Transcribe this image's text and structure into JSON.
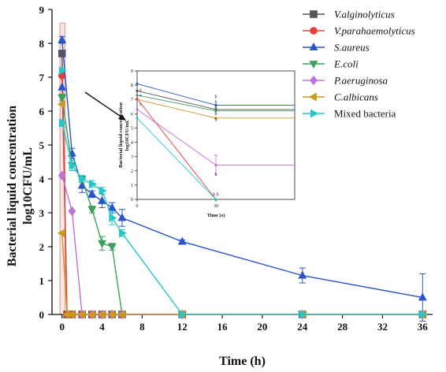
{
  "chart_data": {
    "type": "line",
    "xlabel": "Time (h)",
    "ylabel": "Bacterial liquid concentration log10CFU/mL",
    "ylabel_lines": [
      "Bacterial liquid concentration",
      "log10CFU/mL"
    ],
    "xlim": [
      -1,
      37
    ],
    "ylim": [
      0,
      9
    ],
    "x_ticks": [
      0,
      4,
      8,
      12,
      16,
      20,
      24,
      28,
      32,
      36
    ],
    "y_ticks": [
      0,
      1,
      2,
      3,
      4,
      5,
      6,
      7,
      8,
      9
    ],
    "grid": false,
    "legend_position": "top-right",
    "series": [
      {
        "name": "V.alginolyticus",
        "italic": true,
        "color": "#555555",
        "marker": "square",
        "points": [
          [
            0,
            7.7
          ],
          [
            0.5,
            0
          ],
          [
            1,
            0
          ],
          [
            2,
            0
          ],
          [
            3,
            0
          ],
          [
            4,
            0
          ],
          [
            5,
            0
          ],
          [
            6,
            0
          ],
          [
            12,
            0
          ],
          [
            24,
            0
          ],
          [
            36,
            0
          ]
        ]
      },
      {
        "name": "V.parahaemolyticus",
        "italic": true,
        "color": "#e8403a",
        "marker": "circle",
        "points": [
          [
            0,
            7.05
          ],
          [
            0.5,
            0
          ],
          [
            1,
            0
          ],
          [
            2,
            0
          ],
          [
            3,
            0
          ],
          [
            4,
            0
          ],
          [
            5,
            0
          ],
          [
            6,
            0
          ],
          [
            12,
            0
          ],
          [
            24,
            0
          ],
          [
            36,
            0
          ]
        ]
      },
      {
        "name": "S.aureus",
        "italic": true,
        "color": "#2a55c8",
        "marker": "triangle-up",
        "points": [
          [
            0,
            8.1
          ],
          [
            1,
            4.75
          ],
          [
            2,
            3.8
          ],
          [
            3,
            3.55
          ],
          [
            4,
            3.35
          ],
          [
            5,
            3.15
          ],
          [
            6,
            2.85
          ],
          [
            12,
            2.15
          ],
          [
            24,
            1.15
          ],
          [
            36,
            0.5
          ]
        ],
        "errors": [
          0.1,
          0.15,
          0.2,
          0.1,
          0.2,
          0.15,
          0.25,
          0.05,
          0.22,
          0.7
        ]
      },
      {
        "name": "E.coli",
        "italic": true,
        "color": "#3aa05a",
        "marker": "triangle-down",
        "points": [
          [
            0,
            6.4
          ],
          [
            1,
            4.4
          ],
          [
            2,
            4.0
          ],
          [
            3,
            3.1
          ],
          [
            4,
            2.1
          ],
          [
            5,
            2.0
          ],
          [
            6,
            0
          ],
          [
            12,
            0
          ],
          [
            24,
            0
          ],
          [
            36,
            0
          ]
        ],
        "errors": [
          0.1,
          0.15,
          0.1,
          0.1,
          0.2,
          0.1,
          0,
          0,
          0,
          0
        ]
      },
      {
        "name": "P.aeruginosa",
        "italic": true,
        "color": "#c070d8",
        "marker": "diamond",
        "points": [
          [
            0,
            4.1
          ],
          [
            1,
            3.05
          ],
          [
            2,
            0
          ],
          [
            3,
            0
          ],
          [
            4,
            0
          ],
          [
            5,
            0
          ],
          [
            6,
            0
          ],
          [
            12,
            0
          ],
          [
            24,
            0
          ],
          [
            36,
            0
          ]
        ]
      },
      {
        "name": "C.albicans",
        "italic": true,
        "color": "#c89a1e",
        "marker": "triangle-left",
        "points": [
          [
            0,
            2.4
          ],
          [
            0.5,
            0
          ],
          [
            1,
            0
          ],
          [
            2,
            0
          ],
          [
            3,
            0
          ],
          [
            4,
            0
          ],
          [
            5,
            0
          ],
          [
            6,
            0
          ],
          [
            12,
            0
          ],
          [
            24,
            0
          ],
          [
            36,
            0
          ]
        ]
      },
      {
        "name": "Mixed bacteria",
        "italic": false,
        "color": "#22c8c8",
        "marker": "triangle-right",
        "points": [
          [
            0,
            5.65
          ],
          [
            1,
            4.4
          ],
          [
            2,
            4.0
          ],
          [
            3,
            3.85
          ],
          [
            4,
            3.65
          ],
          [
            5,
            2.85
          ],
          [
            6,
            2.4
          ],
          [
            12,
            0
          ],
          [
            24,
            0
          ],
          [
            36,
            0
          ]
        ],
        "errors": [
          0.1,
          0.15,
          0.1,
          0.1,
          0.1,
          0.2,
          0.1,
          0,
          0,
          0
        ]
      }
    ],
    "extra_markers": [
      {
        "x": 0,
        "y": 7.2,
        "color": "#22c8c8",
        "marker": "triangle-right"
      },
      {
        "x": 0,
        "y": 6.7,
        "color": "#2a55c8",
        "marker": "triangle-up"
      },
      {
        "x": 0,
        "y": 6.2,
        "color": "#c89a1e",
        "marker": "triangle-left"
      }
    ],
    "highlight_region": {
      "x": [
        -0.2,
        0.3
      ],
      "y": [
        0,
        8.6
      ],
      "color": "#e8a0a0"
    },
    "inset": {
      "type": "line",
      "xlabel": "Time (s)",
      "ylabel": "Bacterial liquid concentration log10CFU/mL",
      "ylabel_lines": [
        "Bacterial liquid concentration",
        "log10CFU/mL"
      ],
      "xlim": [
        0,
        60
      ],
      "ylim": [
        0,
        9
      ],
      "x_ticks": [
        0,
        30
      ],
      "y_ticks": [
        0,
        1,
        2,
        3,
        4,
        5,
        6,
        7,
        8,
        9
      ],
      "series": [
        {
          "color": "#2a55c8",
          "points": [
            [
              0,
              8.1
            ],
            [
              30,
              6.6
            ]
          ],
          "end_value": 6.6
        },
        {
          "color": "#555555",
          "points": [
            [
              0,
              7.6
            ],
            [
              30,
              6.3
            ]
          ],
          "end_value": 6.3
        },
        {
          "color": "#3aa05a",
          "points": [
            [
              0,
              7.3
            ],
            [
              30,
              6.2
            ]
          ],
          "end_value": 6.2
        },
        {
          "color": "#c89a1e",
          "points": [
            [
              0,
              7.0
            ],
            [
              30,
              5.7
            ]
          ],
          "end_value": 5.7
        },
        {
          "color": "#c070d8",
          "points": [
            [
              0,
              6.3
            ],
            [
              30,
              2.4
            ]
          ],
          "end_value": 2.4,
          "error": 0.7
        },
        {
          "color": "#e8403a",
          "points": [
            [
              0,
              7.05
            ],
            [
              30,
              0
            ]
          ]
        },
        {
          "color": "#22c8c8",
          "points": [
            [
              0,
              5.7
            ],
            [
              30,
              0
            ]
          ]
        }
      ],
      "annotations": [
        {
          "x": 30,
          "y": 7.1,
          "text": "b"
        },
        {
          "x": 30,
          "y": 6.7,
          "text": "b"
        },
        {
          "x": 30,
          "y": 6.35,
          "text": "b"
        },
        {
          "x": 30,
          "y": 5.9,
          "text": "b"
        },
        {
          "x": 30,
          "y": 5.5,
          "text": "b"
        },
        {
          "x": 30,
          "y": 1.65,
          "text": "b"
        },
        {
          "x": 30,
          "y": 0.25,
          "text": "b b"
        },
        {
          "x": 0,
          "y": 7.6,
          "text": "a"
        },
        {
          "x": 0,
          "y": 7.2,
          "text": "a"
        },
        {
          "x": 0,
          "y": 6.6,
          "text": "a"
        }
      ]
    }
  }
}
